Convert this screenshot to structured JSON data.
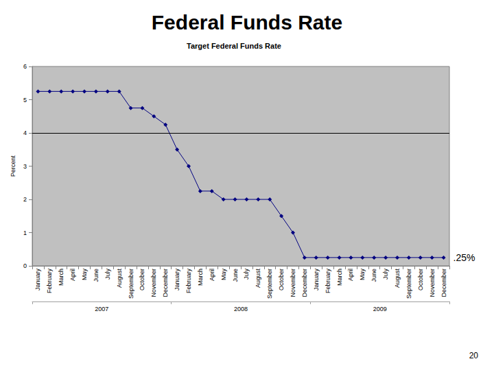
{
  "chart_data": {
    "type": "line",
    "title": "Federal Funds Rate",
    "subtitle": "Target Federal Funds Rate",
    "y_label": "Percent",
    "categories": [
      "January",
      "February",
      "March",
      "April",
      "May",
      "June",
      "July",
      "August",
      "September",
      "October",
      "November",
      "December",
      "January",
      "February",
      "March",
      "April",
      "May",
      "June",
      "July",
      "August",
      "September",
      "October",
      "November",
      "December",
      "January",
      "February",
      "March",
      "April",
      "May",
      "June",
      "July",
      "August",
      "September",
      "October",
      "November",
      "December"
    ],
    "x_groups": [
      "2007",
      "2008",
      "2009"
    ],
    "values": [
      5.25,
      5.25,
      5.25,
      5.25,
      5.25,
      5.25,
      5.25,
      5.25,
      4.75,
      4.75,
      4.5,
      4.25,
      3.5,
      3.0,
      2.25,
      2.25,
      2.0,
      2.0,
      2.0,
      2.0,
      2.0,
      1.5,
      1.0,
      0.25,
      0.25,
      0.25,
      0.25,
      0.25,
      0.25,
      0.25,
      0.25,
      0.25,
      0.25,
      0.25,
      0.25,
      0.25
    ],
    "color": "#000080",
    "marker": "diamond",
    "line_style": "solid",
    "ylim": [
      0,
      6
    ],
    "yticks": [
      0,
      1,
      2,
      3,
      4,
      5,
      6
    ],
    "grid": false,
    "reference_line": 4,
    "annotations": [
      {
        "text": ".25%",
        "index": 35,
        "y": 0.25
      }
    ],
    "page_number": "20"
  }
}
